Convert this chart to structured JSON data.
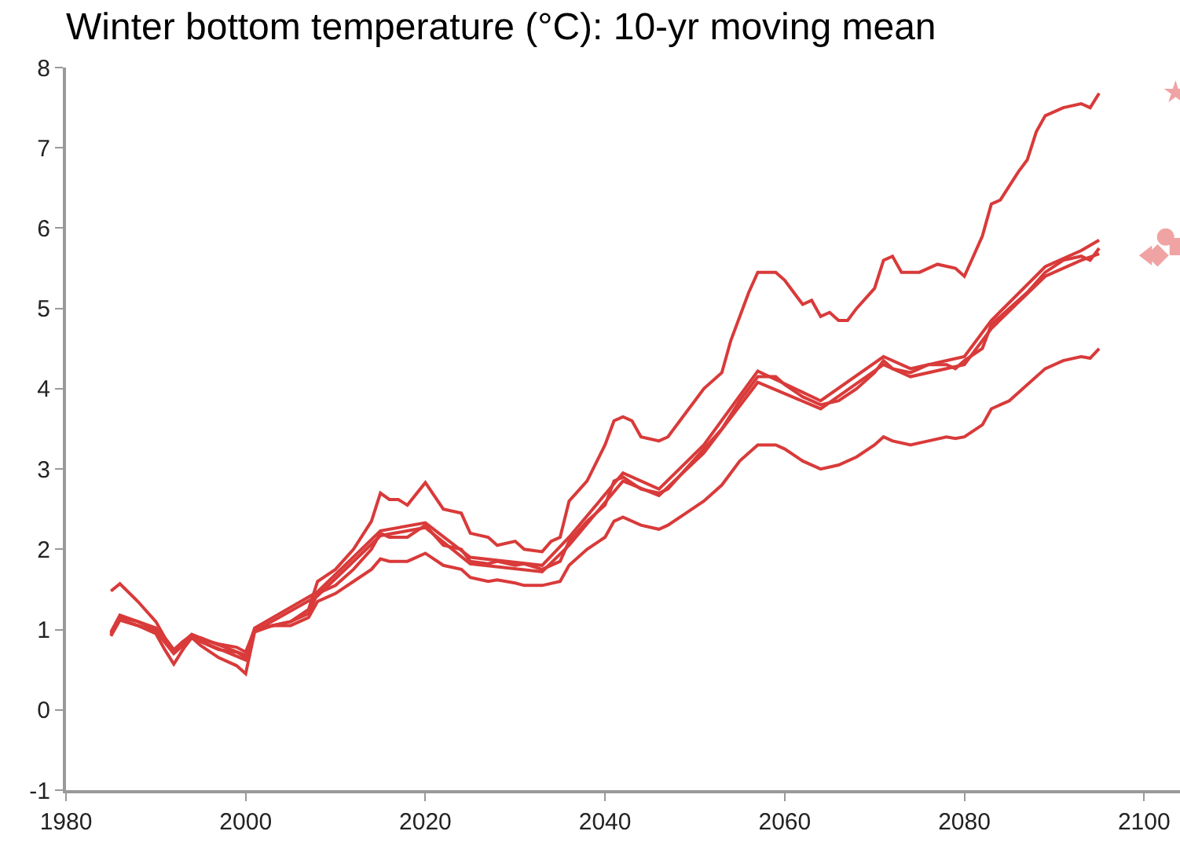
{
  "chart_data": {
    "type": "line",
    "title": "Winter bottom temperature (°C): 10-yr moving mean",
    "xlim": [
      1980,
      2104
    ],
    "xticks": [
      1980,
      2000,
      2020,
      2040,
      2060,
      2080,
      2100
    ],
    "ylim": [
      -1,
      8
    ],
    "yticks": [
      -1,
      0,
      1,
      2,
      3,
      4,
      5,
      6,
      7,
      8
    ],
    "marker": "none",
    "line_style": "solid",
    "series": [
      {
        "color": "#d93a3a",
        "x": [
          1985,
          1986,
          1988,
          1990,
          1991,
          1992,
          1993,
          1994,
          1995,
          1997,
          1999,
          2000,
          2001,
          2003,
          2005,
          2007,
          2008,
          2010,
          2012,
          2014,
          2015,
          2016,
          2017,
          2018,
          2020,
          2022,
          2024,
          2025,
          2027,
          2028,
          2030,
          2031,
          2033,
          2034,
          2035,
          2036,
          2038,
          2040,
          2041,
          2042,
          2043,
          2044,
          2046,
          2047,
          2049,
          2051,
          2053,
          2054,
          2056,
          2057,
          2059,
          2060,
          2061,
          2062,
          2063,
          2064,
          2065,
          2066,
          2067,
          2068,
          2070,
          2071,
          2072,
          2073,
          2075,
          2077,
          2079,
          2080,
          2081,
          2082,
          2083,
          2084,
          2086,
          2087,
          2088,
          2089,
          2091,
          2093,
          2094,
          2095
        ],
        "values": [
          1.48,
          1.57,
          1.35,
          1.1,
          0.9,
          0.75,
          0.85,
          0.93,
          0.88,
          0.82,
          0.78,
          0.72,
          1.0,
          1.05,
          1.1,
          1.25,
          1.6,
          1.75,
          2.0,
          2.35,
          2.7,
          2.62,
          2.62,
          2.55,
          2.83,
          2.5,
          2.45,
          2.2,
          2.15,
          2.05,
          2.1,
          2.0,
          1.97,
          2.1,
          2.15,
          2.6,
          2.85,
          3.3,
          3.6,
          3.65,
          3.6,
          3.4,
          3.35,
          3.4,
          3.7,
          4.0,
          4.2,
          4.6,
          5.2,
          5.45,
          5.45,
          5.35,
          5.2,
          5.05,
          5.1,
          4.9,
          4.95,
          4.85,
          4.85,
          5.0,
          5.25,
          5.6,
          5.65,
          5.45,
          5.45,
          5.55,
          5.5,
          5.4,
          5.65,
          5.9,
          6.3,
          6.35,
          6.7,
          6.85,
          7.2,
          7.4,
          7.5,
          7.55,
          7.5,
          7.68
        ]
      },
      {
        "color": "#d93a3a",
        "x": [
          1985,
          1986,
          1988,
          1990,
          1991,
          1992,
          1993,
          1994,
          1995,
          1997,
          1999,
          2000,
          2001,
          2003,
          2005,
          2007,
          2008,
          2010,
          2012,
          2014,
          2015,
          2016,
          2018,
          2020,
          2022,
          2024,
          2025,
          2027,
          2028,
          2030,
          2031,
          2033,
          2035,
          2036,
          2038,
          2040,
          2041,
          2042,
          2044,
          2046,
          2047,
          2049,
          2051,
          2053,
          2055,
          2057,
          2059,
          2060,
          2062,
          2064,
          2066,
          2068,
          2070,
          2071,
          2072,
          2074,
          2076,
          2078,
          2079,
          2080,
          2082,
          2083,
          2085,
          2087,
          2089,
          2091,
          2093,
          2094,
          2095
        ],
        "values": [
          0.95,
          1.15,
          1.1,
          1.0,
          0.85,
          0.72,
          0.8,
          0.92,
          0.85,
          0.75,
          0.72,
          0.65,
          1.0,
          1.05,
          1.1,
          1.2,
          1.45,
          1.55,
          1.75,
          2.0,
          2.2,
          2.15,
          2.15,
          2.3,
          2.05,
          2.0,
          1.85,
          1.82,
          1.85,
          1.8,
          1.82,
          1.75,
          1.85,
          2.1,
          2.35,
          2.55,
          2.85,
          2.9,
          2.75,
          2.7,
          2.75,
          3.0,
          3.25,
          3.5,
          3.85,
          4.15,
          4.15,
          4.05,
          3.9,
          3.8,
          3.85,
          4.0,
          4.2,
          4.35,
          4.25,
          4.2,
          4.3,
          4.3,
          4.25,
          4.35,
          4.5,
          4.8,
          5.0,
          5.2,
          5.45,
          5.6,
          5.65,
          5.6,
          5.75
        ]
      },
      {
        "color": "#d93a3a",
        "x": [
          1985,
          1986,
          1990,
          1992,
          1994,
          2000,
          2001,
          2008,
          2015,
          2020,
          2025,
          2033,
          2036,
          2042,
          2046,
          2051,
          2057,
          2064,
          2071,
          2074,
          2080,
          2083,
          2089,
          2093,
          2095
        ],
        "values": [
          0.97,
          1.18,
          1.02,
          0.74,
          0.94,
          0.68,
          1.02,
          1.47,
          2.23,
          2.33,
          1.9,
          1.8,
          2.15,
          2.95,
          2.75,
          3.3,
          4.22,
          3.85,
          4.4,
          4.25,
          4.4,
          4.85,
          5.52,
          5.72,
          5.85
        ]
      },
      {
        "color": "#d93a3a",
        "x": [
          1985,
          1986,
          1990,
          1992,
          1994,
          2000,
          2001,
          2008,
          2015,
          2020,
          2025,
          2033,
          2036,
          2042,
          2046,
          2051,
          2057,
          2064,
          2071,
          2074,
          2080,
          2083,
          2089,
          2093,
          2095
        ],
        "values": [
          0.93,
          1.12,
          0.98,
          0.7,
          0.9,
          0.62,
          0.98,
          1.42,
          2.17,
          2.27,
          1.82,
          1.72,
          2.05,
          2.85,
          2.67,
          3.2,
          4.08,
          3.75,
          4.3,
          4.15,
          4.3,
          4.75,
          5.4,
          5.6,
          5.68
        ]
      },
      {
        "color": "#d93a3a",
        "x": [
          1985,
          1986,
          1988,
          1990,
          1991,
          1992,
          1993,
          1994,
          1995,
          1997,
          1999,
          2000,
          2001,
          2003,
          2005,
          2007,
          2008,
          2010,
          2012,
          2014,
          2015,
          2016,
          2018,
          2020,
          2022,
          2024,
          2025,
          2027,
          2028,
          2030,
          2031,
          2033,
          2035,
          2036,
          2038,
          2040,
          2041,
          2042,
          2044,
          2046,
          2047,
          2049,
          2051,
          2053,
          2055,
          2057,
          2059,
          2060,
          2062,
          2064,
          2066,
          2068,
          2070,
          2071,
          2072,
          2074,
          2076,
          2078,
          2079,
          2080,
          2082,
          2083,
          2085,
          2087,
          2089,
          2091,
          2093,
          2094,
          2095
        ],
        "values": [
          0.92,
          1.12,
          1.05,
          0.95,
          0.75,
          0.57,
          0.75,
          0.9,
          0.8,
          0.65,
          0.55,
          0.45,
          0.97,
          1.05,
          1.05,
          1.15,
          1.35,
          1.45,
          1.6,
          1.75,
          1.88,
          1.85,
          1.85,
          1.95,
          1.8,
          1.75,
          1.65,
          1.6,
          1.62,
          1.58,
          1.55,
          1.55,
          1.6,
          1.8,
          2.0,
          2.15,
          2.35,
          2.4,
          2.3,
          2.25,
          2.3,
          2.45,
          2.6,
          2.8,
          3.1,
          3.3,
          3.3,
          3.25,
          3.1,
          3.0,
          3.05,
          3.15,
          3.3,
          3.4,
          3.35,
          3.3,
          3.35,
          3.4,
          3.38,
          3.4,
          3.55,
          3.75,
          3.85,
          4.05,
          4.25,
          4.35,
          4.4,
          4.38,
          4.5
        ]
      },
      {
        "type": "scatter",
        "marker": "star",
        "color": "#f0a3a3",
        "x": [
          2103.5
        ],
        "values": [
          7.69
        ]
      },
      {
        "type": "scatter",
        "marker": "circle",
        "color": "#f0a3a3",
        "x": [
          2102.4
        ],
        "values": [
          5.89
        ]
      },
      {
        "type": "scatter",
        "marker": "square",
        "color": "#f0a3a3",
        "x": [
          2103.8
        ],
        "values": [
          5.77
        ]
      },
      {
        "type": "scatter",
        "marker": "triangle",
        "color": "#f0a3a3",
        "x": [
          2100.4
        ],
        "values": [
          5.66
        ]
      },
      {
        "type": "scatter",
        "marker": "diamond",
        "color": "#f0a3a3",
        "x": [
          2101.5
        ],
        "values": [
          5.66
        ]
      }
    ]
  }
}
